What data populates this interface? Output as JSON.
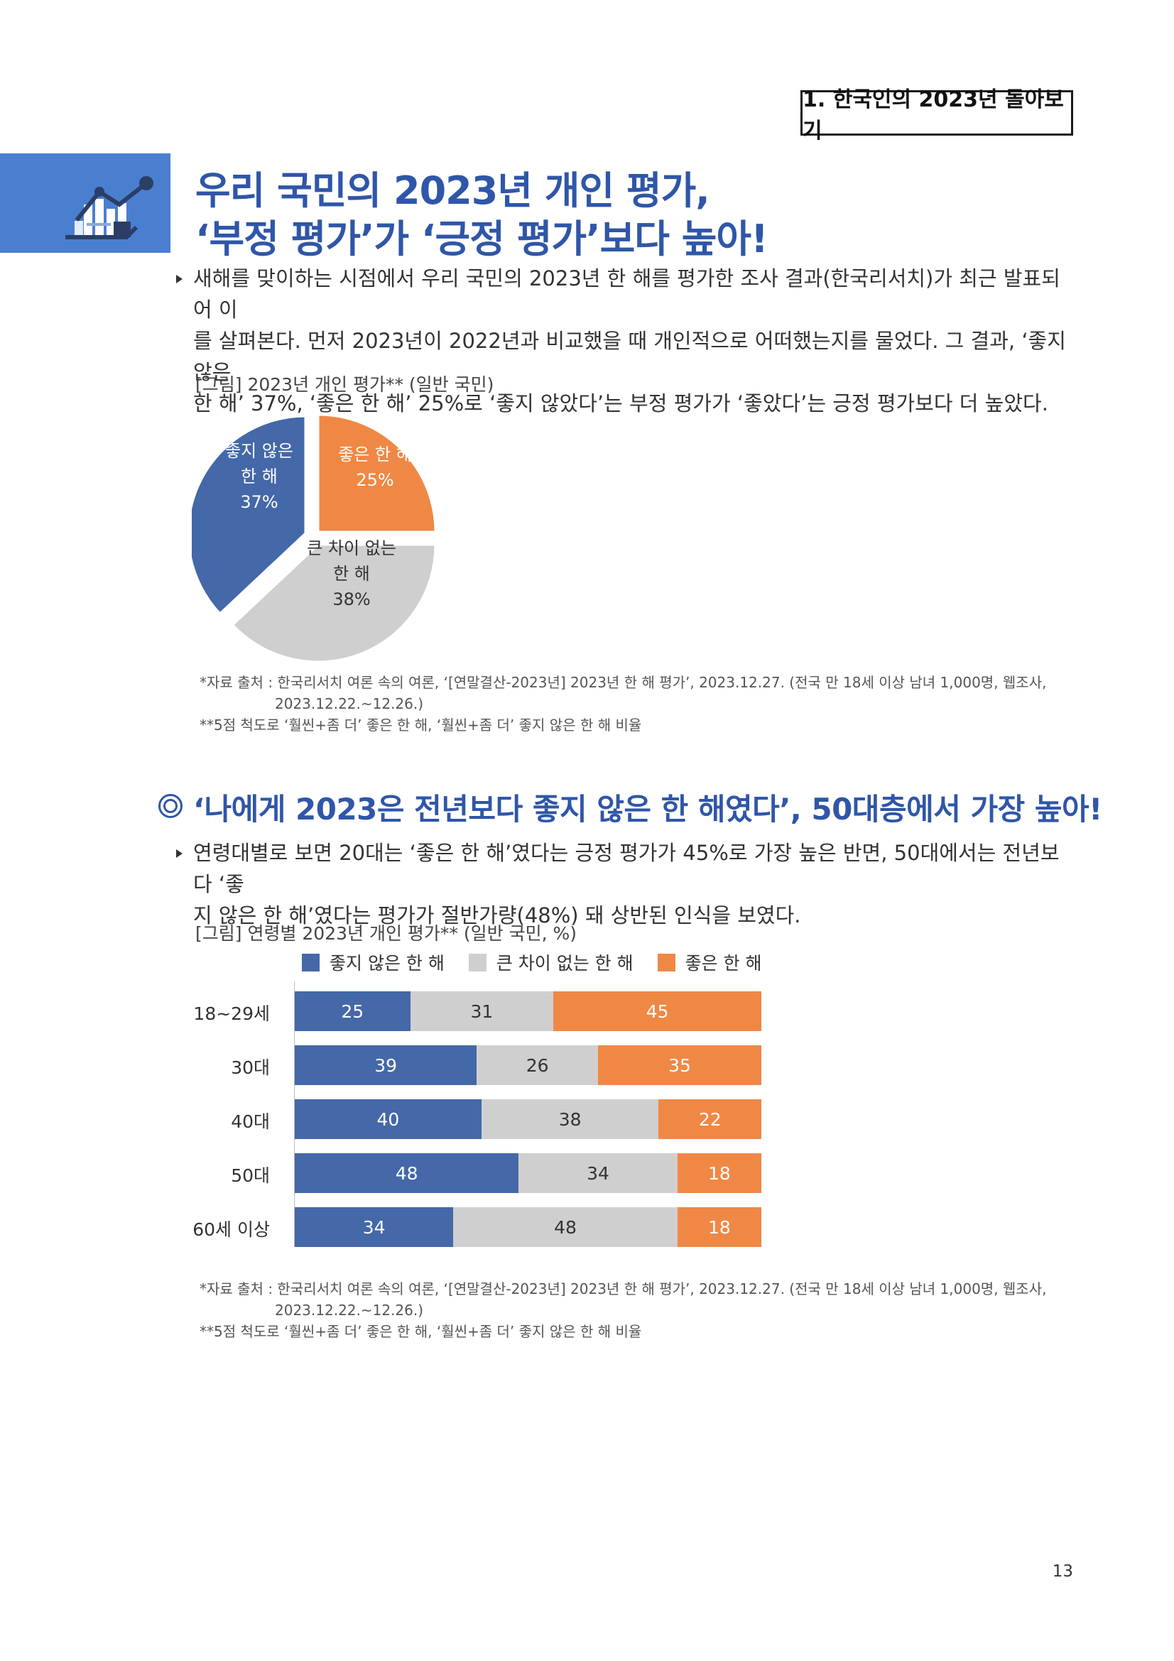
{
  "section_tag": "1. 한국인의 2023년 돌아보기",
  "headline": {
    "line1": "우리 국민의 2023년 개인 평가,",
    "line2": "‘부정 평가’가 ‘긍정 평가’보다 높아!"
  },
  "paragraph1": {
    "line1": "새해를 맞이하는 시점에서 우리 국민의 2023년 한 해를 평가한 조사 결과(한국리서치)가 최근 발표되어 이",
    "line2": "를 살펴본다. 먼저 2023년이 2022년과 비교했을 때 개인적으로 어떠했는지를 물었다. 그 결과, ‘좋지 않은",
    "line3": "한 해’ 37%, ‘좋은 한 해’ 25%로 ‘좋지 않았다’는 부정 평가가 ‘좋았다’는 긍정 평가보다 더 높았다."
  },
  "figure1": {
    "caption": "[그림] 2023년 개인 평가** (일반 국민)",
    "note_source_line1": "*자료 출처 : 한국리서치 여론 속의 여론, ‘[연말결산-2023년] 2023년 한 해 평가’, 2023.12.27. (전국 만 18세 이상 남녀 1,000명, 웹조사,",
    "note_source_line2": "2023.12.22.~12.26.)",
    "note_scale": "**5점 척도로 ‘훨씬+좀 더’ 좋은 한 해, ‘훨씬+좀 더’ 좋지 않은 한 해 비율"
  },
  "subheading": "‘나에게 2023은 전년보다 좋지 않은 한 해였다’, 50대층에서 가장 높아!",
  "paragraph2": {
    "line1": "연령대별로 보면 20대는 ‘좋은 한 해’였다는 긍정 평가가 45%로 가장 높은 반면, 50대에서는 전년보다 ‘좋",
    "line2": "지 않은 한 해’였다는 평가가 절반가량(48%) 돼 상반된 인식을 보였다."
  },
  "figure2": {
    "caption": "[그림] 연령별 2023년 개인 평가** (일반 국민, %)",
    "note_source_line1": "*자료 출처 : 한국리서치 여론 속의 여론, ‘[연말결산-2023년] 2023년 한 해 평가’, 2023.12.27. (전국 만 18세 이상 남녀 1,000명, 웹조사,",
    "note_source_line2": "2023.12.22.~12.26.)",
    "note_scale": "**5점 척도로 ‘훨씬+좀 더’ 좋은 한 해, ‘훨씬+좀 더’ 좋지 않은 한 해 비율"
  },
  "colors": {
    "negative": "#4468a8",
    "neutral": "#d0cfcf",
    "positive": "#f08845"
  },
  "icons": {
    "section_icon": "chart-growth-icon",
    "subheading_marker": "double-circle-icon",
    "bullet": "triangle-bullet-icon"
  },
  "page_number": "13",
  "chart_data": [
    {
      "type": "pie",
      "title": "",
      "slices": [
        {
          "label_line1": "좋지 않은",
          "label_line2": "한 해",
          "value": 37,
          "value_label": "37%",
          "color": "#4468a8"
        },
        {
          "label_line1": "좋은 한 해",
          "label_line2": "",
          "value": 25,
          "value_label": "25%",
          "color": "#f08845"
        },
        {
          "label_line1": "큰 차이 없는",
          "label_line2": "한 해",
          "value": 38,
          "value_label": "38%",
          "color": "#d0cfcf"
        }
      ]
    },
    {
      "type": "bar",
      "orientation": "horizontal",
      "stacked": true,
      "categories": [
        "18~29세",
        "30대",
        "40대",
        "50대",
        "60세 이상"
      ],
      "series": [
        {
          "name": "좋지 않은 한 해",
          "values": [
            25,
            39,
            40,
            48,
            34
          ],
          "color": "#4468a8"
        },
        {
          "name": "큰 차이 없는 한 해",
          "values": [
            31,
            26,
            38,
            34,
            48
          ],
          "color": "#d0cfcf"
        },
        {
          "name": "좋은 한 해",
          "values": [
            45,
            35,
            22,
            18,
            18
          ],
          "color": "#f08845"
        }
      ],
      "legend": "top",
      "grid": false
    }
  ]
}
